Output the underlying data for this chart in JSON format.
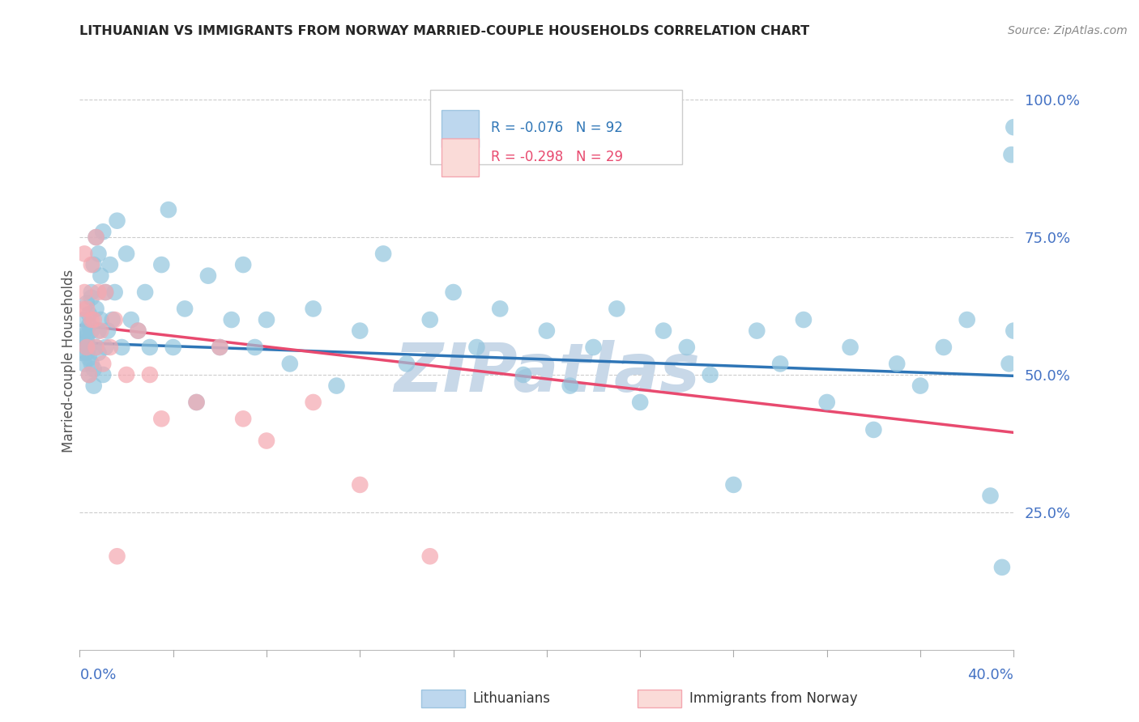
{
  "title": "LITHUANIAN VS IMMIGRANTS FROM NORWAY MARRIED-COUPLE HOUSEHOLDS CORRELATION CHART",
  "source": "Source: ZipAtlas.com",
  "ylabel": "Married-couple Households",
  "xlim": [
    0.0,
    0.4
  ],
  "ylim": [
    0.0,
    1.05
  ],
  "yticks": [
    0.25,
    0.5,
    0.75,
    1.0
  ],
  "ytick_labels": [
    "25.0%",
    "50.0%",
    "75.0%",
    "100.0%"
  ],
  "series": [
    {
      "name": "Lithuanians",
      "R": -0.076,
      "N": 92,
      "dot_color": "#92C5DE",
      "dot_edge_color": "#5BA3CC",
      "legend_face": "#BDD7EE",
      "legend_edge": "#9EC4E0",
      "trend_color": "#2E75B6",
      "x": [
        0.001,
        0.001,
        0.002,
        0.002,
        0.002,
        0.003,
        0.003,
        0.003,
        0.003,
        0.003,
        0.004,
        0.004,
        0.004,
        0.004,
        0.004,
        0.005,
        0.005,
        0.005,
        0.005,
        0.006,
        0.006,
        0.006,
        0.007,
        0.007,
        0.007,
        0.008,
        0.008,
        0.008,
        0.009,
        0.009,
        0.01,
        0.01,
        0.011,
        0.011,
        0.012,
        0.013,
        0.014,
        0.015,
        0.016,
        0.018,
        0.02,
        0.022,
        0.025,
        0.028,
        0.03,
        0.035,
        0.038,
        0.04,
        0.045,
        0.05,
        0.055,
        0.06,
        0.065,
        0.07,
        0.075,
        0.08,
        0.09,
        0.1,
        0.11,
        0.12,
        0.13,
        0.14,
        0.15,
        0.16,
        0.17,
        0.18,
        0.19,
        0.2,
        0.21,
        0.22,
        0.23,
        0.24,
        0.25,
        0.26,
        0.27,
        0.28,
        0.29,
        0.3,
        0.31,
        0.32,
        0.33,
        0.34,
        0.35,
        0.36,
        0.37,
        0.38,
        0.39,
        0.395,
        0.398,
        0.399,
        0.4,
        0.4
      ],
      "y": [
        0.54,
        0.57,
        0.58,
        0.52,
        0.6,
        0.55,
        0.54,
        0.57,
        0.63,
        0.56,
        0.5,
        0.61,
        0.53,
        0.59,
        0.55,
        0.65,
        0.52,
        0.58,
        0.64,
        0.51,
        0.7,
        0.48,
        0.55,
        0.62,
        0.75,
        0.58,
        0.72,
        0.54,
        0.68,
        0.6,
        0.76,
        0.5,
        0.65,
        0.55,
        0.58,
        0.7,
        0.6,
        0.65,
        0.78,
        0.55,
        0.72,
        0.6,
        0.58,
        0.65,
        0.55,
        0.7,
        0.8,
        0.55,
        0.62,
        0.45,
        0.68,
        0.55,
        0.6,
        0.7,
        0.55,
        0.6,
        0.52,
        0.62,
        0.48,
        0.58,
        0.72,
        0.52,
        0.6,
        0.65,
        0.55,
        0.62,
        0.5,
        0.58,
        0.48,
        0.55,
        0.62,
        0.45,
        0.58,
        0.55,
        0.5,
        0.3,
        0.58,
        0.52,
        0.6,
        0.45,
        0.55,
        0.4,
        0.52,
        0.48,
        0.55,
        0.6,
        0.28,
        0.15,
        0.52,
        0.9,
        0.95,
        0.58
      ],
      "trend_x": [
        0.0,
        0.4
      ],
      "trend_y": [
        0.558,
        0.498
      ]
    },
    {
      "name": "Immigrants from Norway",
      "R": -0.298,
      "N": 29,
      "dot_color": "#F4A7B0",
      "dot_edge_color": "#E87080",
      "legend_face": "#FADBD8",
      "legend_edge": "#F4A7B0",
      "trend_color": "#E84A6F",
      "x": [
        0.001,
        0.002,
        0.002,
        0.003,
        0.003,
        0.004,
        0.005,
        0.005,
        0.006,
        0.007,
        0.007,
        0.008,
        0.009,
        0.01,
        0.011,
        0.013,
        0.015,
        0.016,
        0.02,
        0.025,
        0.03,
        0.035,
        0.05,
        0.06,
        0.07,
        0.08,
        0.1,
        0.12,
        0.15
      ],
      "y": [
        0.62,
        0.72,
        0.65,
        0.62,
        0.55,
        0.5,
        0.6,
        0.7,
        0.6,
        0.55,
        0.75,
        0.65,
        0.58,
        0.52,
        0.65,
        0.55,
        0.6,
        0.17,
        0.5,
        0.58,
        0.5,
        0.42,
        0.45,
        0.55,
        0.42,
        0.38,
        0.45,
        0.3,
        0.17
      ],
      "trend_x": [
        0.0,
        0.4
      ],
      "trend_y": [
        0.59,
        0.395
      ]
    }
  ],
  "watermark": "ZIPatlas",
  "watermark_color": "#C8D8E8",
  "background_color": "#FFFFFF",
  "grid_color": "#CCCCCC",
  "text_color": "#4472C4",
  "title_color": "#262626"
}
